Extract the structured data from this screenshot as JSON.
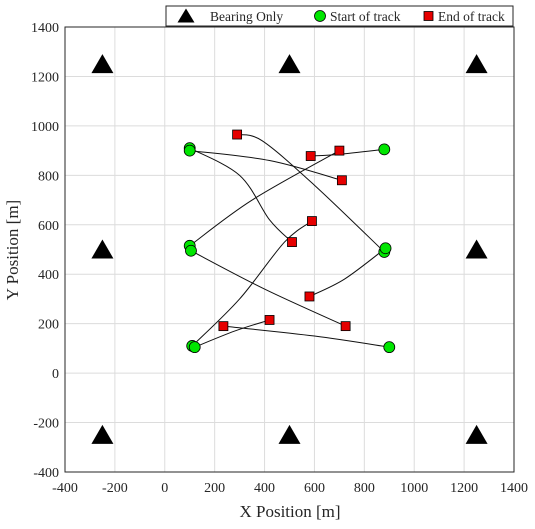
{
  "chart_data": {
    "type": "scatter",
    "xlabel": "X Position [m]",
    "ylabel": "Y Position [m]",
    "xlim": [
      -400,
      1400
    ],
    "ylim": [
      -400,
      1400
    ],
    "xticks": [
      -400,
      -200,
      0,
      200,
      400,
      600,
      800,
      1000,
      1200,
      1400
    ],
    "yticks": [
      -400,
      -200,
      0,
      200,
      400,
      600,
      800,
      1000,
      1200,
      1400
    ],
    "grid": true,
    "legend_position": "top-right",
    "legend": {
      "sensors": "Bearing Only",
      "start": "Start of track",
      "end": "End of track"
    },
    "colors": {
      "sensor": "#000000",
      "start": "#00e600",
      "end": "#e60000",
      "line": "#111111",
      "grid": "#dcdcdc"
    },
    "sensors": [
      {
        "x": -250,
        "y": 1250
      },
      {
        "x": 500,
        "y": 1250
      },
      {
        "x": 1250,
        "y": 1250
      },
      {
        "x": -250,
        "y": 500
      },
      {
        "x": 1250,
        "y": 500
      },
      {
        "x": -250,
        "y": -250
      },
      {
        "x": 500,
        "y": -250
      },
      {
        "x": 1250,
        "y": -250
      }
    ],
    "tracks": [
      {
        "start": [
          100,
          910
        ],
        "points": [
          [
            100,
            910
          ],
          [
            300,
            800
          ],
          [
            420,
            620
          ],
          [
            510,
            530
          ]
        ],
        "end": [
          510,
          530
        ]
      },
      {
        "start": [
          880,
          905
        ],
        "points": [
          [
            880,
            905
          ],
          [
            700,
            885
          ],
          [
            585,
            878
          ]
        ],
        "end": [
          585,
          878
        ]
      },
      {
        "start": [
          100,
          900
        ],
        "points": [
          [
            100,
            900
          ],
          [
            420,
            860
          ],
          [
            710,
            780
          ]
        ],
        "end": [
          710,
          780
        ]
      },
      {
        "start": [
          100,
          515
        ],
        "points": [
          [
            100,
            515
          ],
          [
            350,
            700
          ],
          [
            700,
            900
          ]
        ],
        "end": [
          700,
          900
        ]
      },
      {
        "start": [
          880,
          490
        ],
        "points": [
          [
            880,
            490
          ],
          [
            600,
            760
          ],
          [
            390,
            940
          ],
          [
            290,
            965
          ]
        ],
        "end": [
          290,
          965
        ]
      },
      {
        "start": [
          885,
          505
        ],
        "points": [
          [
            885,
            505
          ],
          [
            720,
            380
          ],
          [
            580,
            310
          ]
        ],
        "end": [
          580,
          310
        ]
      },
      {
        "start": [
          105,
          495
        ],
        "points": [
          [
            105,
            495
          ],
          [
            400,
            340
          ],
          [
            725,
            190
          ]
        ],
        "end": [
          725,
          190
        ]
      },
      {
        "start": [
          110,
          110
        ],
        "points": [
          [
            110,
            110
          ],
          [
            300,
            300
          ],
          [
            480,
            530
          ],
          [
            590,
            615
          ]
        ],
        "end": [
          590,
          615
        ]
      },
      {
        "start": [
          120,
          105
        ],
        "points": [
          [
            120,
            105
          ],
          [
            280,
            170
          ],
          [
            420,
            215
          ]
        ],
        "end": [
          420,
          215
        ]
      },
      {
        "start": [
          900,
          105
        ],
        "points": [
          [
            900,
            105
          ],
          [
            600,
            150
          ],
          [
            235,
            190
          ]
        ],
        "end": [
          235,
          190
        ]
      }
    ]
  }
}
